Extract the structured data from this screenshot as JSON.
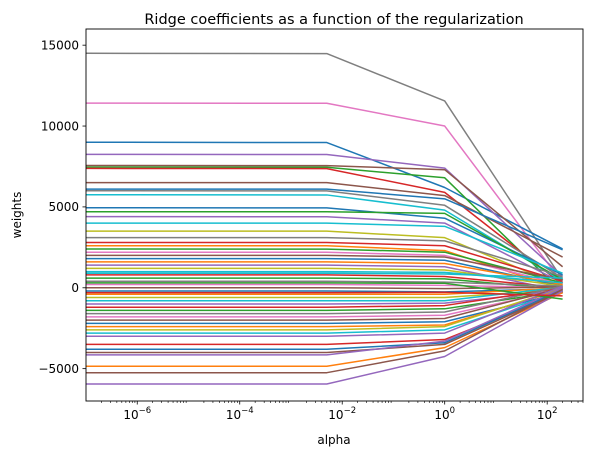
{
  "chart_data": {
    "type": "line",
    "title": "Ridge coefficients as a function of the regularization",
    "xlabel": "alpha",
    "ylabel": "weights",
    "xscale": "log",
    "xlim": [
      1e-07,
      500
    ],
    "ylim": [
      -7000,
      16000
    ],
    "grid": false,
    "legend": "none",
    "x": [
      1e-07,
      0.005,
      1,
      200
    ],
    "xticks": [
      {
        "value": 1e-06,
        "base": "10",
        "exp": "−6"
      },
      {
        "value": 0.0001,
        "base": "10",
        "exp": "−4"
      },
      {
        "value": 0.01,
        "base": "10",
        "exp": "−2"
      },
      {
        "value": 1,
        "base": "10",
        "exp": "0"
      },
      {
        "value": 100,
        "base": "10",
        "exp": "2"
      }
    ],
    "yticks": [
      {
        "value": -5000,
        "label": "−5000"
      },
      {
        "value": 0,
        "label": "0"
      },
      {
        "value": 5000,
        "label": "5000"
      },
      {
        "value": 10000,
        "label": "10000"
      },
      {
        "value": 15000,
        "label": "15000"
      }
    ],
    "palette": [
      "#1f77b4",
      "#ff7f0e",
      "#2ca02c",
      "#d62728",
      "#9467bd",
      "#8c564b",
      "#e377c2",
      "#7f7f7f",
      "#bcbd22",
      "#17becf"
    ],
    "series": [
      {
        "color": "#7f7f7f",
        "values": [
          14500,
          14480,
          11550,
          500
        ]
      },
      {
        "color": "#e377c2",
        "values": [
          11420,
          11410,
          10000,
          300
        ]
      },
      {
        "color": "#1f77b4",
        "values": [
          9000,
          8980,
          6200,
          2400
        ]
      },
      {
        "color": "#9467bd",
        "values": [
          8250,
          8240,
          7400,
          700
        ]
      },
      {
        "color": "#8c564b",
        "values": [
          7560,
          7550,
          7300,
          1300
        ]
      },
      {
        "color": "#2ca02c",
        "values": [
          7460,
          7450,
          6800,
          -300
        ]
      },
      {
        "color": "#d62728",
        "values": [
          7380,
          7370,
          5900,
          200
        ]
      },
      {
        "color": "#8c564b",
        "values": [
          6500,
          6500,
          5700,
          1900
        ]
      },
      {
        "color": "#1f77b4",
        "values": [
          6100,
          6100,
          5500,
          2350
        ]
      },
      {
        "color": "#7f7f7f",
        "values": [
          6000,
          5990,
          5100,
          600
        ]
      },
      {
        "color": "#17becf",
        "values": [
          5750,
          5740,
          4800,
          400
        ]
      },
      {
        "color": "#1f77b4",
        "values": [
          4950,
          4940,
          4300,
          800
        ]
      },
      {
        "color": "#2ca02c",
        "values": [
          4700,
          4700,
          4600,
          500
        ]
      },
      {
        "color": "#9467bd",
        "values": [
          4400,
          4390,
          4000,
          300
        ]
      },
      {
        "color": "#17becf",
        "values": [
          4000,
          4000,
          3800,
          900
        ]
      },
      {
        "color": "#bcbd22",
        "values": [
          3500,
          3500,
          3100,
          100
        ]
      },
      {
        "color": "#7f7f7f",
        "values": [
          3100,
          3100,
          2900,
          700
        ]
      },
      {
        "color": "#d62728",
        "values": [
          2800,
          2800,
          2600,
          400
        ]
      },
      {
        "color": "#ff7f0e",
        "values": [
          2600,
          2600,
          2300,
          -100
        ]
      },
      {
        "color": "#2ca02c",
        "values": [
          2400,
          2390,
          2200,
          300
        ]
      },
      {
        "color": "#e377c2",
        "values": [
          2200,
          2200,
          2000,
          200
        ]
      },
      {
        "color": "#8c564b",
        "values": [
          2000,
          2000,
          1900,
          500
        ]
      },
      {
        "color": "#1f77b4",
        "values": [
          1800,
          1800,
          1700,
          100
        ]
      },
      {
        "color": "#ff7f0e",
        "values": [
          1600,
          1600,
          1500,
          200
        ]
      },
      {
        "color": "#9467bd",
        "values": [
          1400,
          1400,
          1300,
          -200
        ]
      },
      {
        "color": "#bcbd22",
        "values": [
          1200,
          1200,
          1100,
          100
        ]
      },
      {
        "color": "#17becf",
        "values": [
          1000,
          1000,
          950,
          300
        ]
      },
      {
        "color": "#d62728",
        "values": [
          800,
          800,
          700,
          0
        ]
      },
      {
        "color": "#2ca02c",
        "values": [
          600,
          600,
          550,
          -100
        ]
      },
      {
        "color": "#7f7f7f",
        "values": [
          400,
          400,
          350,
          100
        ]
      },
      {
        "color": "#e377c2",
        "values": [
          200,
          200,
          150,
          0
        ]
      },
      {
        "color": "#8c564b",
        "values": [
          0,
          0,
          -50,
          50
        ]
      },
      {
        "color": "#1f77b4",
        "values": [
          -200,
          -200,
          -250,
          -50
        ]
      },
      {
        "color": "#ff7f0e",
        "values": [
          -400,
          -400,
          -400,
          0
        ]
      },
      {
        "color": "#bcbd22",
        "values": [
          -600,
          -600,
          -600,
          -100
        ]
      },
      {
        "color": "#17becf",
        "values": [
          -800,
          -800,
          -800,
          50
        ]
      },
      {
        "color": "#9467bd",
        "values": [
          -1000,
          -1000,
          -950,
          -150
        ]
      },
      {
        "color": "#d62728",
        "values": [
          -1200,
          -1200,
          -1100,
          0
        ]
      },
      {
        "color": "#2ca02c",
        "values": [
          -1400,
          -1400,
          -1300,
          -200
        ]
      },
      {
        "color": "#7f7f7f",
        "values": [
          -1600,
          -1600,
          -1500,
          100
        ]
      },
      {
        "color": "#e377c2",
        "values": [
          -1800,
          -1800,
          -1700,
          -100
        ]
      },
      {
        "color": "#8c564b",
        "values": [
          -2000,
          -2000,
          -1900,
          0
        ]
      },
      {
        "color": "#1f77b4",
        "values": [
          -2200,
          -2200,
          -2100,
          -300
        ]
      },
      {
        "color": "#ff7f0e",
        "values": [
          -2400,
          -2400,
          -2300,
          -100
        ]
      },
      {
        "color": "#bcbd22",
        "values": [
          -2600,
          -2600,
          -2400,
          0
        ]
      },
      {
        "color": "#17becf",
        "values": [
          -2800,
          -2800,
          -2600,
          -200
        ]
      },
      {
        "color": "#9467bd",
        "values": [
          -3000,
          -3000,
          -2800,
          100
        ]
      },
      {
        "color": "#d62728",
        "values": [
          -3500,
          -3500,
          -3200,
          -300
        ]
      },
      {
        "color": "#1f77b4",
        "values": [
          -3800,
          -3800,
          -3400,
          -100
        ]
      },
      {
        "color": "#8c564b",
        "values": [
          -4000,
          -4000,
          -3500,
          -200
        ]
      },
      {
        "color": "#9467bd",
        "values": [
          -4150,
          -4150,
          -3300,
          0
        ]
      },
      {
        "color": "#ff7f0e",
        "values": [
          -4850,
          -4850,
          -3700,
          -300
        ]
      },
      {
        "color": "#8c564b",
        "values": [
          -5250,
          -5250,
          -3900,
          -100
        ]
      },
      {
        "color": "#9467bd",
        "values": [
          -5950,
          -5950,
          -4250,
          -200
        ]
      },
      {
        "color": "#2ca02c",
        "values": [
          300,
          300,
          280,
          -700
        ]
      },
      {
        "color": "#d62728",
        "values": [
          -300,
          -300,
          -280,
          -500
        ]
      },
      {
        "color": "#17becf",
        "values": [
          900,
          900,
          850,
          600
        ]
      }
    ]
  }
}
